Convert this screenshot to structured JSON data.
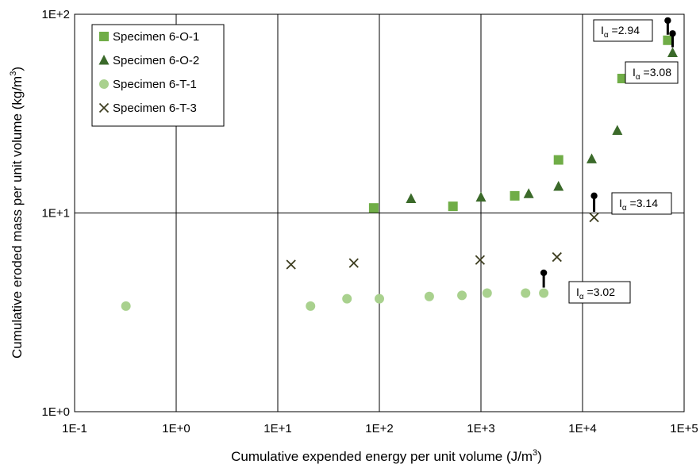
{
  "chart_data": {
    "type": "scatter",
    "xlabel": {
      "text": "Cumulative expended energy per unit volume (J/m",
      "sup": "3",
      "close": ")"
    },
    "ylabel": {
      "text": "Cumulative eroded mass per unit volume (kg/m",
      "sup": "3",
      "close": ")"
    },
    "x_scale": "log",
    "y_scale": "log",
    "xlim": [
      0.1,
      100000
    ],
    "ylim": [
      1,
      100
    ],
    "x_ticks": [
      {
        "value": 0.1,
        "label": "1E-1"
      },
      {
        "value": 1,
        "label": "1E+0"
      },
      {
        "value": 10,
        "label": "1E+1"
      },
      {
        "value": 100,
        "label": "1E+2"
      },
      {
        "value": 1000,
        "label": "1E+3"
      },
      {
        "value": 10000,
        "label": "1E+4"
      },
      {
        "value": 100000,
        "label": "1E+5"
      }
    ],
    "y_ticks": [
      {
        "value": 1,
        "label": "1E+0"
      },
      {
        "value": 10,
        "label": "1E+1"
      },
      {
        "value": 100,
        "label": "1E+2"
      }
    ],
    "grid": true,
    "legend_position": "top-left",
    "series": [
      {
        "name": "Specimen 6-O-1",
        "marker": "square",
        "color": "#70AD47",
        "points": [
          [
            88,
            10.6
          ],
          [
            530,
            10.8
          ],
          [
            2150,
            12.2
          ],
          [
            5800,
            18.5
          ],
          [
            24500,
            47.5
          ],
          [
            69000,
            74
          ]
        ]
      },
      {
        "name": "Specimen 6-O-2",
        "marker": "triangle",
        "color": "#3B6A2A",
        "points": [
          [
            205,
            11.8
          ],
          [
            1000,
            12.0
          ],
          [
            2950,
            12.5
          ],
          [
            5800,
            13.6
          ],
          [
            12300,
            18.7
          ],
          [
            22000,
            26
          ],
          [
            77000,
            64
          ]
        ]
      },
      {
        "name": "Specimen 6-T-1",
        "marker": "circle",
        "color": "#A9D18E",
        "points": [
          [
            0.32,
            3.4
          ],
          [
            21,
            3.4
          ],
          [
            48,
            3.7
          ],
          [
            100,
            3.7
          ],
          [
            310,
            3.8
          ],
          [
            650,
            3.85
          ],
          [
            1150,
            3.95
          ],
          [
            2750,
            3.95
          ],
          [
            4150,
            3.95
          ]
        ]
      },
      {
        "name": "Specimen 6-T-3",
        "marker": "x",
        "color": "#3D3D1F",
        "points": [
          [
            13.5,
            5.5
          ],
          [
            56,
            5.6
          ],
          [
            980,
            5.8
          ],
          [
            5600,
            6.0
          ],
          [
            13000,
            9.5
          ]
        ]
      }
    ],
    "annotations": [
      {
        "symbol": "I",
        "sub": "α",
        "text": "=2.94",
        "marker_at": [
          69000,
          74
        ],
        "lollipop_top": [
          69000,
          93
        ]
      },
      {
        "symbol": "I",
        "sub": "α",
        "text": "=3.08",
        "marker_at": [
          77000,
          64
        ],
        "lollipop_top": [
          77000,
          80
        ]
      },
      {
        "symbol": "I",
        "sub": "α",
        "text": "=3.14",
        "marker_at": [
          13000,
          9.5
        ],
        "lollipop_top": [
          13000,
          12.2
        ]
      },
      {
        "symbol": "I",
        "sub": "α",
        "text": "=3.02",
        "marker_at": [
          4150,
          3.95
        ],
        "lollipop_top": [
          4150,
          5.0
        ]
      }
    ]
  }
}
